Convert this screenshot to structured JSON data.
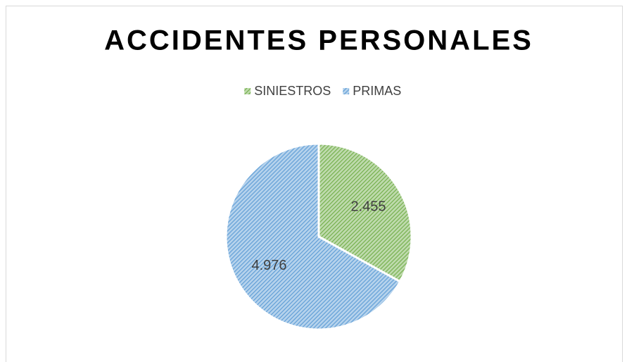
{
  "chart_data": {
    "type": "pie",
    "title": "ACCIDENTES PERSONALES",
    "categories": [
      "SINIESTROS",
      "PRIMAS"
    ],
    "values": [
      2455,
      4976
    ],
    "value_labels": [
      "2.455",
      "4.976"
    ],
    "colors": [
      "#70ad47",
      "#5b9bd5"
    ],
    "legend": "top"
  }
}
